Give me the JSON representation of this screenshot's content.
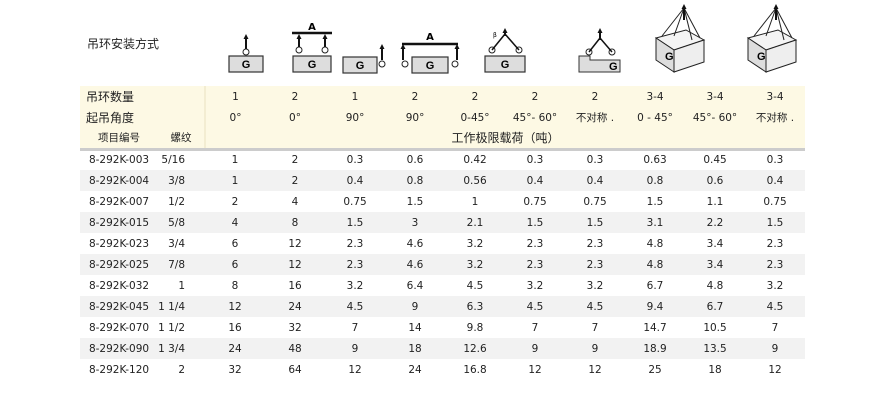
{
  "title": "吊环安装方式",
  "icons": [
    "single-vertical",
    "double-vertical-beam",
    "single-side",
    "double-side-beam",
    "double-angle",
    "double-asymmetric",
    "multi-box",
    "multi-box-asymmetric",
    "",
    ""
  ],
  "icon_label_G": "G",
  "icon_label_A": "A",
  "icon_label_beta": "β",
  "rows_header": {
    "count_label": "吊环数量",
    "counts": [
      "1",
      "2",
      "1",
      "2",
      "2",
      "2",
      "2",
      "3-4",
      "3-4",
      "3-4"
    ],
    "angle_label": "起吊角度",
    "angles": [
      "0°",
      "0°",
      "90°",
      "90°",
      "0-45°",
      "45°- 60°",
      "不对称 .",
      "0 - 45°",
      "45°- 60°",
      "不对称 ."
    ],
    "code_label": "项目编号",
    "thread_label": "螺纹",
    "load_label": "工作极限载荷（吨）"
  },
  "rows": [
    {
      "code": "8-292K-003",
      "thread": "5/16",
      "v": [
        "1",
        "2",
        "0.3",
        "0.6",
        "0.42",
        "0.3",
        "0.3",
        "0.63",
        "0.45",
        "0.3"
      ]
    },
    {
      "code": "8-292K-004",
      "thread": "3/8",
      "v": [
        "1",
        "2",
        "0.4",
        "0.8",
        "0.56",
        "0.4",
        "0.4",
        "0.8",
        "0.6",
        "0.4"
      ]
    },
    {
      "code": "8-292K-007",
      "thread": "1/2",
      "v": [
        "2",
        "4",
        "0.75",
        "1.5",
        "1",
        "0.75",
        "0.75",
        "1.5",
        "1.1",
        "0.75"
      ]
    },
    {
      "code": "8-292K-015",
      "thread": "5/8",
      "v": [
        "4",
        "8",
        "1.5",
        "3",
        "2.1",
        "1.5",
        "1.5",
        "3.1",
        "2.2",
        "1.5"
      ]
    },
    {
      "code": "8-292K-023",
      "thread": "3/4",
      "v": [
        "6",
        "12",
        "2.3",
        "4.6",
        "3.2",
        "2.3",
        "2.3",
        "4.8",
        "3.4",
        "2.3"
      ]
    },
    {
      "code": "8-292K-025",
      "thread": "7/8",
      "v": [
        "6",
        "12",
        "2.3",
        "4.6",
        "3.2",
        "2.3",
        "2.3",
        "4.8",
        "3.4",
        "2.3"
      ]
    },
    {
      "code": "8-292K-032",
      "thread": "1",
      "v": [
        "8",
        "16",
        "3.2",
        "6.4",
        "4.5",
        "3.2",
        "3.2",
        "6.7",
        "4.8",
        "3.2"
      ]
    },
    {
      "code": "8-292K-045",
      "thread": "1 1/4",
      "v": [
        "12",
        "24",
        "4.5",
        "9",
        "6.3",
        "4.5",
        "4.5",
        "9.4",
        "6.7",
        "4.5"
      ]
    },
    {
      "code": "8-292K-070",
      "thread": "1 1/2",
      "v": [
        "16",
        "32",
        "7",
        "14",
        "9.8",
        "7",
        "7",
        "14.7",
        "10.5",
        "7"
      ]
    },
    {
      "code": "8-292K-090",
      "thread": "1 3/4",
      "v": [
        "24",
        "48",
        "9",
        "18",
        "12.6",
        "9",
        "9",
        "18.9",
        "13.5",
        "9"
      ]
    },
    {
      "code": "8-292K-120",
      "thread": "2",
      "v": [
        "32",
        "64",
        "12",
        "24",
        "16.8",
        "12",
        "12",
        "25",
        "18",
        "12"
      ]
    }
  ]
}
